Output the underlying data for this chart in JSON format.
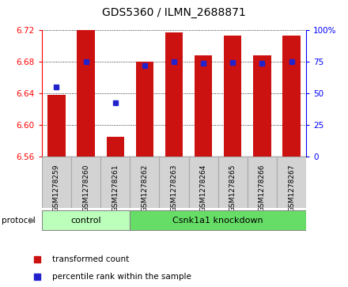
{
  "title": "GDS5360 / ILMN_2688871",
  "samples": [
    "GSM1278259",
    "GSM1278260",
    "GSM1278261",
    "GSM1278262",
    "GSM1278263",
    "GSM1278264",
    "GSM1278265",
    "GSM1278266",
    "GSM1278267"
  ],
  "bar_tops": [
    6.638,
    6.72,
    6.585,
    6.68,
    6.717,
    6.688,
    6.713,
    6.688,
    6.713
  ],
  "bar_bottom": 6.56,
  "blue_y": [
    6.648,
    6.68,
    6.628,
    6.675,
    6.68,
    6.678,
    6.679,
    6.678,
    6.68
  ],
  "ylim_left": [
    6.56,
    6.72
  ],
  "ylim_right": [
    0,
    100
  ],
  "yticks_left": [
    6.56,
    6.6,
    6.64,
    6.68,
    6.72
  ],
  "yticks_right": [
    0,
    25,
    50,
    75,
    100
  ],
  "ytick_labels_right": [
    "0",
    "25",
    "50",
    "75",
    "100%"
  ],
  "bar_color": "#cc1111",
  "blue_color": "#2222cc",
  "plot_bg": "#ffffff",
  "tick_box_color": "#d3d3d3",
  "tick_box_edge": "#aaaaaa",
  "control_samples": 3,
  "control_label": "control",
  "knockdown_label": "Csnk1a1 knockdown",
  "protocol_label": "protocol",
  "control_color": "#bbffbb",
  "knockdown_color": "#66dd66",
  "legend1": "transformed count",
  "legend2": "percentile rank within the sample",
  "bar_width": 0.6
}
